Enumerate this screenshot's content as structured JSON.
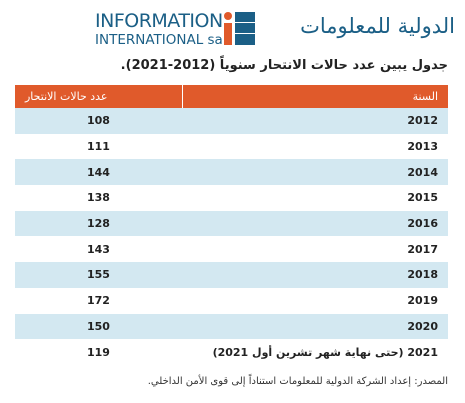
{
  "header": {
    "logo_line1": "INFORMATION",
    "logo_line2": "INTERNATIONAL sal",
    "logo_arabic": "الدولية للمعلومات"
  },
  "title": "جدول يبين عدد حالات الانتحار سنوياً (2012-2021).",
  "table": {
    "columns": [
      "السنة",
      "عدد حالات الانتحار"
    ],
    "rows": [
      [
        "2012",
        108
      ],
      [
        "2013",
        111
      ],
      [
        "2014",
        144
      ],
      [
        "2015",
        138
      ],
      [
        "2016",
        128
      ],
      [
        "2017",
        143
      ],
      [
        "2018",
        155
      ],
      [
        "2019",
        172
      ],
      [
        "2020",
        150
      ],
      [
        "2021 (حتى نهاية شهر تشرين أول 2021)",
        119
      ]
    ]
  },
  "source": "المصدر: إعداد الشركة الدولية للمعلومات استناداً إلى قوى الأمن الداخلي."
}
